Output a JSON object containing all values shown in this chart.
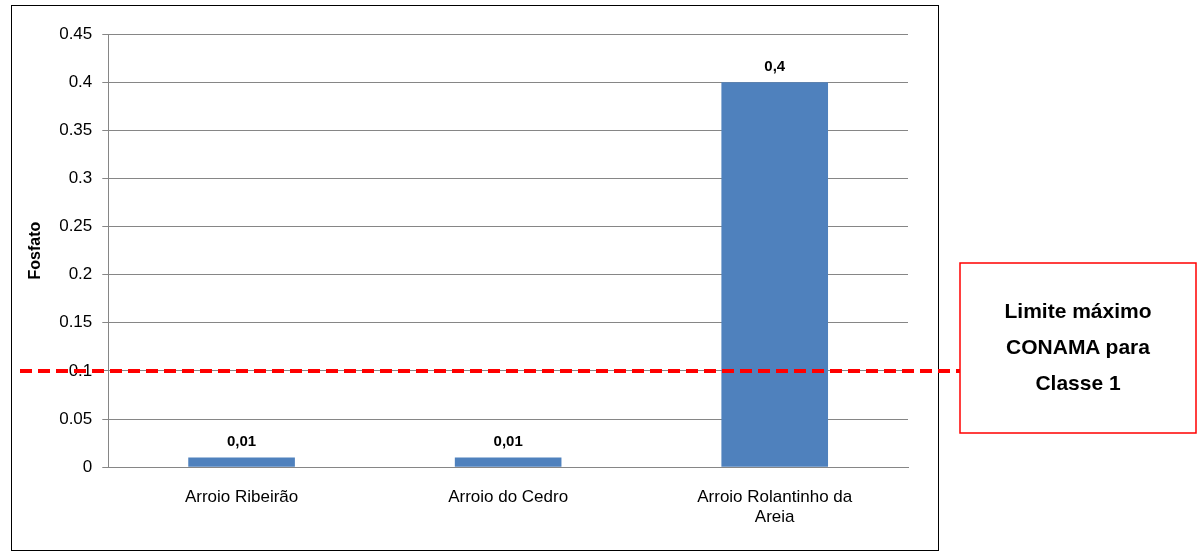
{
  "chart_data": {
    "type": "bar",
    "ylabel": "Fosfato",
    "categories": [
      "Arroio Ribeirão",
      "Arroio do Cedro",
      "Arroio Rolantinho da Areia"
    ],
    "values": [
      0.01,
      0.01,
      0.4
    ],
    "value_labels": [
      "0,01",
      "0,01",
      "0,4"
    ],
    "color": "#4f81bd",
    "ylim": [
      0,
      0.45
    ],
    "yticks": [
      0,
      0.05,
      0.1,
      0.15,
      0.2,
      0.25,
      0.3,
      0.35,
      0.4,
      0.45
    ],
    "grid": "y",
    "legend": false,
    "ref_lines": [
      {
        "axis": "y",
        "value": 0.1,
        "label": "Limite máximo CONAMA para Classe 1",
        "color": "#ff0000",
        "line_style": "dashed"
      }
    ]
  }
}
